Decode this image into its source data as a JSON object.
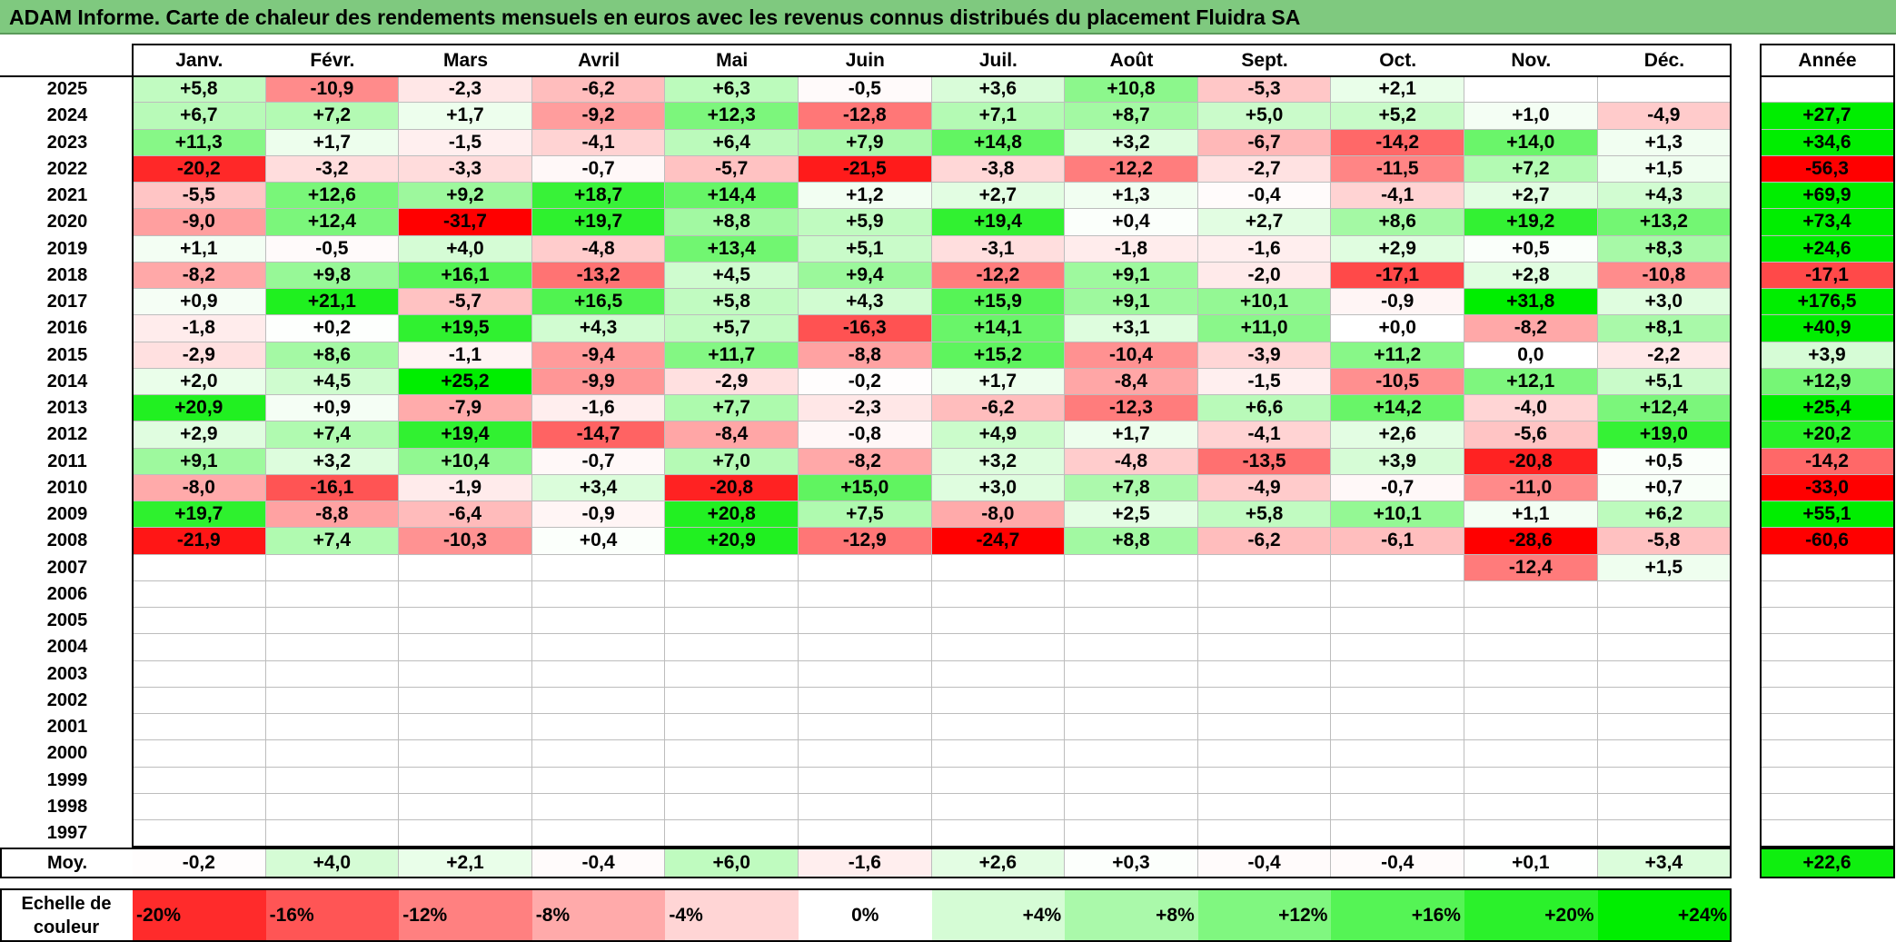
{
  "title": "ADAM Informe. Carte de chaleur des rendements mensuels en euros avec les revenus connus distribués du placement Fluidra SA",
  "colors": {
    "title_bar": "#7fc97f",
    "negative_strong": "#ff0000",
    "neutral": "#ffffff",
    "positive_strong": "#00ee00"
  },
  "chart_data": {
    "type": "heatmap",
    "title": "ADAM Informe. Carte de chaleur des rendements mensuels en euros avec les revenus connus distribués du placement Fluidra SA",
    "columns": [
      "Janv.",
      "Févr.",
      "Mars",
      "Avril",
      "Mai",
      "Juin",
      "Juil.",
      "Août",
      "Sept.",
      "Oct.",
      "Nov.",
      "Déc."
    ],
    "year_column_label": "Année",
    "rows": [
      {
        "year": "2025",
        "values": [
          "+5,8",
          "-10,9",
          "-2,3",
          "-6,2",
          "+6,3",
          "-0,5",
          "+3,6",
          "+10,8",
          "-5,3",
          "+2,1",
          "",
          ""
        ],
        "annual": ""
      },
      {
        "year": "2024",
        "values": [
          "+6,7",
          "+7,2",
          "+1,7",
          "-9,2",
          "+12,3",
          "-12,8",
          "+7,1",
          "+8,7",
          "+5,0",
          "+5,2",
          "+1,0",
          "-4,9"
        ],
        "annual": "+27,7"
      },
      {
        "year": "2023",
        "values": [
          "+11,3",
          "+1,7",
          "-1,5",
          "-4,1",
          "+6,4",
          "+7,9",
          "+14,8",
          "+3,2",
          "-6,7",
          "-14,2",
          "+14,0",
          "+1,3"
        ],
        "annual": "+34,6"
      },
      {
        "year": "2022",
        "values": [
          "-20,2",
          "-3,2",
          "-3,3",
          "-0,7",
          "-5,7",
          "-21,5",
          "-3,8",
          "-12,2",
          "-2,7",
          "-11,5",
          "+7,2",
          "+1,5"
        ],
        "annual": "-56,3"
      },
      {
        "year": "2021",
        "values": [
          "-5,5",
          "+12,6",
          "+9,2",
          "+18,7",
          "+14,4",
          "+1,2",
          "+2,7",
          "+1,3",
          "-0,4",
          "-4,1",
          "+2,7",
          "+4,3"
        ],
        "annual": "+69,9"
      },
      {
        "year": "2020",
        "values": [
          "-9,0",
          "+12,4",
          "-31,7",
          "+19,7",
          "+8,8",
          "+5,9",
          "+19,4",
          "+0,4",
          "+2,7",
          "+8,6",
          "+19,2",
          "+13,2"
        ],
        "annual": "+73,4"
      },
      {
        "year": "2019",
        "values": [
          "+1,1",
          "-0,5",
          "+4,0",
          "-4,8",
          "+13,4",
          "+5,1",
          "-3,1",
          "-1,8",
          "-1,6",
          "+2,9",
          "+0,5",
          "+8,3"
        ],
        "annual": "+24,6"
      },
      {
        "year": "2018",
        "values": [
          "-8,2",
          "+9,8",
          "+16,1",
          "-13,2",
          "+4,5",
          "+9,4",
          "-12,2",
          "+9,1",
          "-2,0",
          "-17,1",
          "+2,8",
          "-10,8"
        ],
        "annual": "-17,1"
      },
      {
        "year": "2017",
        "values": [
          "+0,9",
          "+21,1",
          "-5,7",
          "+16,5",
          "+5,8",
          "+4,3",
          "+15,9",
          "+9,1",
          "+10,1",
          "-0,9",
          "+31,8",
          "+3,0"
        ],
        "annual": "+176,5"
      },
      {
        "year": "2016",
        "values": [
          "-1,8",
          "+0,2",
          "+19,5",
          "+4,3",
          "+5,7",
          "-16,3",
          "+14,1",
          "+3,1",
          "+11,0",
          "+0,0",
          "-8,2",
          "+8,1"
        ],
        "annual": "+40,9"
      },
      {
        "year": "2015",
        "values": [
          "-2,9",
          "+8,6",
          "-1,1",
          "-9,4",
          "+11,7",
          "-8,8",
          "+15,2",
          "-10,4",
          "-3,9",
          "+11,2",
          "0,0",
          "-2,2"
        ],
        "annual": "+3,9"
      },
      {
        "year": "2014",
        "values": [
          "+2,0",
          "+4,5",
          "+25,2",
          "-9,9",
          "-2,9",
          "-0,2",
          "+1,7",
          "-8,4",
          "-1,5",
          "-10,5",
          "+12,1",
          "+5,1"
        ],
        "annual": "+12,9"
      },
      {
        "year": "2013",
        "values": [
          "+20,9",
          "+0,9",
          "-7,9",
          "-1,6",
          "+7,7",
          "-2,3",
          "-6,2",
          "-12,3",
          "+6,6",
          "+14,2",
          "-4,0",
          "+12,4"
        ],
        "annual": "+25,4"
      },
      {
        "year": "2012",
        "values": [
          "+2,9",
          "+7,4",
          "+19,4",
          "-14,7",
          "-8,4",
          "-0,8",
          "+4,9",
          "+1,7",
          "-4,1",
          "+2,6",
          "-5,6",
          "+19,0"
        ],
        "annual": "+20,2"
      },
      {
        "year": "2011",
        "values": [
          "+9,1",
          "+3,2",
          "+10,4",
          "-0,7",
          "+7,0",
          "-8,2",
          "+3,2",
          "-4,8",
          "-13,5",
          "+3,9",
          "-20,8",
          "+0,5"
        ],
        "annual": "-14,2"
      },
      {
        "year": "2010",
        "values": [
          "-8,0",
          "-16,1",
          "-1,9",
          "+3,4",
          "-20,8",
          "+15,0",
          "+3,0",
          "+7,8",
          "-4,9",
          "-0,7",
          "-11,0",
          "+0,7"
        ],
        "annual": "-33,0"
      },
      {
        "year": "2009",
        "values": [
          "+19,7",
          "-8,8",
          "-6,4",
          "-0,9",
          "+20,8",
          "+7,5",
          "-8,0",
          "+2,5",
          "+5,8",
          "+10,1",
          "+1,1",
          "+6,2"
        ],
        "annual": "+55,1"
      },
      {
        "year": "2008",
        "values": [
          "-21,9",
          "+7,4",
          "-10,3",
          "+0,4",
          "+20,9",
          "-12,9",
          "-24,7",
          "+8,8",
          "-6,2",
          "-6,1",
          "-28,6",
          "-5,8"
        ],
        "annual": "-60,6"
      },
      {
        "year": "2007",
        "values": [
          "",
          "",
          "",
          "",
          "",
          "",
          "",
          "",
          "",
          "",
          "-12,4",
          "+1,5"
        ],
        "annual": ""
      },
      {
        "year": "2006",
        "values": [
          "",
          "",
          "",
          "",
          "",
          "",
          "",
          "",
          "",
          "",
          "",
          ""
        ],
        "annual": ""
      },
      {
        "year": "2005",
        "values": [
          "",
          "",
          "",
          "",
          "",
          "",
          "",
          "",
          "",
          "",
          "",
          ""
        ],
        "annual": ""
      },
      {
        "year": "2004",
        "values": [
          "",
          "",
          "",
          "",
          "",
          "",
          "",
          "",
          "",
          "",
          "",
          ""
        ],
        "annual": ""
      },
      {
        "year": "2003",
        "values": [
          "",
          "",
          "",
          "",
          "",
          "",
          "",
          "",
          "",
          "",
          "",
          ""
        ],
        "annual": ""
      },
      {
        "year": "2002",
        "values": [
          "",
          "",
          "",
          "",
          "",
          "",
          "",
          "",
          "",
          "",
          "",
          ""
        ],
        "annual": ""
      },
      {
        "year": "2001",
        "values": [
          "",
          "",
          "",
          "",
          "",
          "",
          "",
          "",
          "",
          "",
          "",
          ""
        ],
        "annual": ""
      },
      {
        "year": "2000",
        "values": [
          "",
          "",
          "",
          "",
          "",
          "",
          "",
          "",
          "",
          "",
          "",
          ""
        ],
        "annual": ""
      },
      {
        "year": "1999",
        "values": [
          "",
          "",
          "",
          "",
          "",
          "",
          "",
          "",
          "",
          "",
          "",
          ""
        ],
        "annual": ""
      },
      {
        "year": "1998",
        "values": [
          "",
          "",
          "",
          "",
          "",
          "",
          "",
          "",
          "",
          "",
          "",
          ""
        ],
        "annual": ""
      },
      {
        "year": "1997",
        "values": [
          "",
          "",
          "",
          "",
          "",
          "",
          "",
          "",
          "",
          "",
          "",
          ""
        ],
        "annual": ""
      }
    ],
    "average_row": {
      "label": "Moy.",
      "values": [
        "-0,2",
        "+4,0",
        "+2,1",
        "-0,4",
        "+6,0",
        "-1,6",
        "+2,6",
        "+0,3",
        "-0,4",
        "-0,4",
        "+0,1",
        "+3,4"
      ],
      "annual": "+22,6"
    },
    "color_scale": {
      "label_line1": "Echelle de",
      "label_line2": "couleur",
      "steps": [
        {
          "label": "-20%",
          "value": -20
        },
        {
          "label": "-16%",
          "value": -16
        },
        {
          "label": "-12%",
          "value": -12
        },
        {
          "label": "-8%",
          "value": -8
        },
        {
          "label": "-4%",
          "value": -4
        },
        {
          "label": "0%",
          "value": 0
        },
        {
          "label": "+4%",
          "value": 4
        },
        {
          "label": "+8%",
          "value": 8
        },
        {
          "label": "+12%",
          "value": 12
        },
        {
          "label": "+16%",
          "value": 16
        },
        {
          "label": "+20%",
          "value": 20
        },
        {
          "label": "+24%",
          "value": 24
        }
      ]
    }
  }
}
